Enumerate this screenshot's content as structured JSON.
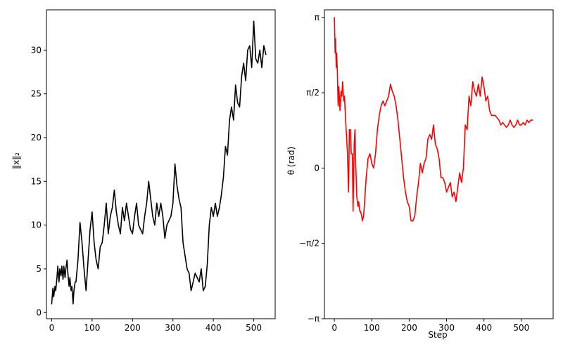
{
  "chart_data": [
    {
      "type": "line",
      "title": "",
      "xlabel": "",
      "ylabel": "‖x‖₂",
      "xlim": [
        -13,
        553
      ],
      "ylim": [
        -0.7,
        34.6
      ],
      "grid": false,
      "xticks": [
        0,
        100,
        200,
        300,
        400,
        500
      ],
      "xtick_labels": [
        "0",
        "100",
        "200",
        "300",
        "400",
        "500"
      ],
      "yticks": [
        0,
        5,
        10,
        15,
        20,
        25,
        30
      ],
      "ytick_labels": [
        "0",
        "5",
        "10",
        "15",
        "20",
        "25",
        "30"
      ],
      "series": [
        {
          "color": "#000000",
          "x": [
            0,
            3,
            5,
            8,
            10,
            13,
            15,
            18,
            20,
            23,
            25,
            28,
            30,
            33,
            35,
            38,
            40,
            43,
            45,
            48,
            50,
            53,
            55,
            58,
            60,
            63,
            65,
            70,
            75,
            80,
            85,
            90,
            95,
            100,
            105,
            110,
            115,
            120,
            125,
            130,
            135,
            140,
            145,
            150,
            155,
            160,
            165,
            170,
            175,
            180,
            185,
            190,
            195,
            200,
            205,
            210,
            215,
            220,
            225,
            230,
            235,
            240,
            245,
            250,
            255,
            260,
            265,
            270,
            275,
            280,
            285,
            290,
            295,
            300,
            305,
            310,
            315,
            320,
            325,
            330,
            335,
            340,
            345,
            350,
            355,
            360,
            365,
            370,
            375,
            380,
            385,
            390,
            395,
            400,
            405,
            410,
            415,
            420,
            425,
            430,
            435,
            440,
            445,
            450,
            455,
            460,
            465,
            470,
            475,
            480,
            485,
            490,
            495,
            500,
            505,
            510,
            515,
            520,
            525,
            530
          ],
          "y": [
            1.0,
            2.8,
            1.8,
            3.0,
            2.5,
            4.0,
            5.3,
            3.5,
            5.0,
            4.2,
            5.3,
            3.8,
            5.3,
            4.0,
            5.0,
            6.0,
            4.5,
            3.0,
            4.0,
            2.5,
            3.0,
            1.0,
            2.5,
            3.5,
            3.5,
            5.0,
            6.0,
            10.3,
            8.0,
            5.0,
            2.5,
            6.0,
            9.5,
            11.5,
            8.0,
            6.0,
            5.0,
            7.5,
            8.0,
            10.0,
            12.5,
            9.0,
            11.0,
            12.0,
            14.0,
            11.5,
            10.0,
            9.0,
            12.0,
            10.5,
            12.5,
            11.0,
            9.5,
            9.0,
            11.0,
            12.5,
            10.0,
            9.5,
            9.0,
            11.0,
            12.5,
            15.0,
            13.0,
            11.0,
            10.0,
            12.5,
            11.0,
            12.5,
            11.0,
            8.5,
            10.0,
            10.5,
            11.0,
            12.5,
            17.0,
            14.5,
            13.0,
            12.0,
            8.0,
            6.5,
            5.0,
            4.5,
            2.5,
            3.5,
            4.5,
            4.0,
            3.5,
            5.0,
            2.5,
            3.0,
            5.5,
            10.0,
            12.0,
            11.0,
            12.5,
            11.0,
            12.0,
            13.5,
            15.5,
            19.0,
            18.0,
            22.0,
            23.5,
            22.0,
            26.0,
            24.0,
            23.5,
            27.0,
            28.5,
            26.5,
            30.0,
            30.5,
            28.0,
            33.3,
            29.0,
            28.5,
            30.0,
            28.0,
            30.5,
            29.5
          ]
        }
      ]
    },
    {
      "type": "line",
      "title": "",
      "xlabel": "Step",
      "ylabel": "θ (rad)",
      "xlim": [
        -26.6,
        585
      ],
      "ylim": [
        -3.1416,
        3.3
      ],
      "grid": false,
      "xticks": [
        0,
        100,
        200,
        300,
        400,
        500
      ],
      "xtick_labels": [
        "0",
        "100",
        "200",
        "300",
        "400",
        "500"
      ],
      "ytick_labels": [
        "−π",
        "−π/2",
        "0",
        "π/2",
        "π"
      ],
      "series": [
        {
          "color": "#ff0000",
          "x": [
            0,
            2,
            3,
            5,
            6,
            8,
            10,
            12,
            15,
            18,
            20,
            22,
            25,
            27,
            30,
            33,
            35,
            38,
            40,
            43,
            45,
            48,
            50,
            53,
            55,
            57,
            60,
            63,
            65,
            68,
            70,
            73,
            75,
            78,
            80,
            85,
            90,
            95,
            100,
            105,
            110,
            115,
            120,
            125,
            130,
            135,
            140,
            145,
            150,
            155,
            160,
            165,
            170,
            175,
            180,
            185,
            190,
            195,
            200,
            205,
            210,
            215,
            220,
            225,
            230,
            235,
            240,
            245,
            250,
            255,
            260,
            265,
            270,
            275,
            280,
            285,
            290,
            295,
            300,
            305,
            310,
            315,
            320,
            325,
            330,
            335,
            340,
            345,
            350,
            355,
            360,
            365,
            370,
            375,
            380,
            385,
            390,
            395,
            400,
            405,
            410,
            415,
            420,
            425,
            430,
            435,
            440,
            445,
            450,
            455,
            460,
            465,
            470,
            475,
            480,
            485,
            490,
            495,
            500,
            505,
            510,
            515,
            520,
            525,
            530
          ],
          "y": [
            3.14,
            2.4,
            2.7,
            2.1,
            2.4,
            2.0,
            1.3,
            1.7,
            1.2,
            1.6,
            1.5,
            1.8,
            1.4,
            1.5,
            1.0,
            0.6,
            0.3,
            -0.5,
            0.8,
            0.8,
            0.3,
            0.3,
            -0.9,
            0.5,
            0.8,
            0.1,
            -0.6,
            -0.8,
            -0.7,
            -0.9,
            -0.9,
            -1.0,
            -1.1,
            -1.0,
            -0.8,
            -0.2,
            0.2,
            0.3,
            0.1,
            0.0,
            0.3,
            0.8,
            1.1,
            1.3,
            1.4,
            1.3,
            1.4,
            1.5,
            1.75,
            1.6,
            1.5,
            1.3,
            1.0,
            0.6,
            0.2,
            -0.2,
            -0.5,
            -0.7,
            -0.8,
            -1.1,
            -1.1,
            -1.0,
            -0.6,
            -0.3,
            0.1,
            -0.1,
            0.1,
            0.2,
            0.6,
            0.7,
            0.6,
            0.9,
            0.5,
            0.4,
            0.2,
            -0.2,
            -0.2,
            -0.3,
            -0.5,
            -0.4,
            -0.3,
            -0.6,
            -0.5,
            -0.7,
            -0.4,
            -0.1,
            -0.3,
            0.0,
            0.9,
            0.8,
            1.5,
            1.3,
            1.8,
            1.6,
            1.5,
            1.75,
            1.5,
            1.9,
            1.7,
            1.4,
            1.5,
            1.2,
            1.1,
            1.1,
            1.1,
            1.05,
            1.0,
            0.9,
            0.95,
            0.9,
            0.85,
            0.9,
            1.0,
            0.9,
            0.85,
            0.9,
            1.0,
            0.9,
            0.9,
            0.95,
            0.9,
            1.0,
            0.95,
            1.0,
            1.0
          ]
        }
      ]
    }
  ]
}
